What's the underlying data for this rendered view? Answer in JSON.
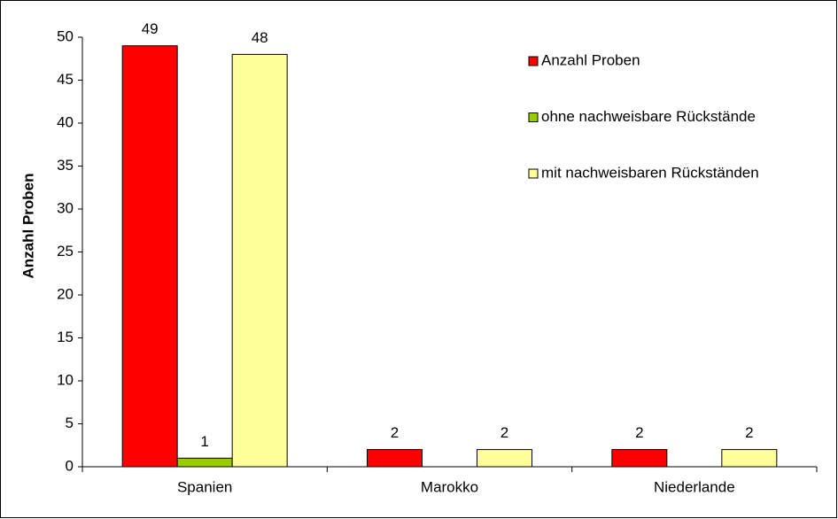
{
  "chart_data": {
    "type": "bar",
    "y_label": "Anzahl Proben",
    "categories": [
      "Spanien",
      "Marokko",
      "Niederlande"
    ],
    "series": [
      {
        "name": "Anzahl Proben",
        "color": "#ff0000",
        "values": [
          49,
          2,
          2
        ]
      },
      {
        "name": "ohne nachweisbare Rückstände",
        "color": "#99cc00",
        "values": [
          1,
          null,
          null
        ]
      },
      {
        "name": "mit nachweisbaren Rückständen",
        "color": "#ffff99",
        "values": [
          48,
          2,
          2
        ]
      }
    ],
    "ylim": [
      0,
      50
    ],
    "yticks": [
      0,
      5,
      10,
      15,
      20,
      25,
      30,
      35,
      40,
      45,
      50
    ],
    "legend": "top-right"
  }
}
